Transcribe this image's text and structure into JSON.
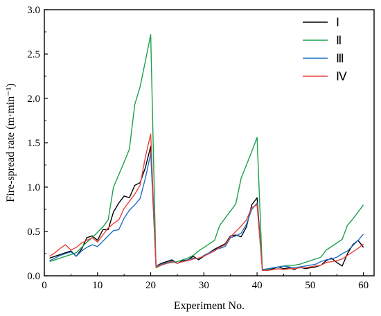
{
  "chart_data": {
    "type": "line",
    "title": "",
    "xlabel": "Experiment No.",
    "ylabel": "Fire-spread rate (m·min⁻¹)",
    "xlim": [
      0,
      62
    ],
    "ylim": [
      0,
      3.0
    ],
    "xticks": [
      0,
      10,
      20,
      30,
      40,
      50,
      60
    ],
    "yticks": [
      0.0,
      0.5,
      1.0,
      1.5,
      2.0,
      2.5,
      3.0
    ],
    "ytick_labels": [
      "0.0",
      "0.5",
      "1.0",
      "1.5",
      "2.0",
      "2.5",
      "3.0"
    ],
    "grid": false,
    "legend_position": "top-right",
    "x": [
      1,
      2,
      3,
      4,
      5,
      6,
      7,
      8,
      9,
      10,
      11,
      12,
      13,
      14,
      15,
      16,
      17,
      18,
      19,
      20,
      21,
      22,
      23,
      24,
      25,
      26,
      27,
      28,
      29,
      30,
      31,
      32,
      33,
      34,
      35,
      36,
      37,
      38,
      39,
      40,
      41,
      42,
      43,
      44,
      45,
      46,
      47,
      48,
      49,
      50,
      51,
      52,
      53,
      54,
      55,
      56,
      57,
      58,
      59,
      60
    ],
    "series": [
      {
        "name": "Ⅰ",
        "color": "#000000",
        "values": [
          0.2,
          0.22,
          0.24,
          0.26,
          0.28,
          0.22,
          0.3,
          0.43,
          0.45,
          0.4,
          0.52,
          0.52,
          0.72,
          0.82,
          0.9,
          0.88,
          1.02,
          1.05,
          1.22,
          1.46,
          0.11,
          0.14,
          0.16,
          0.18,
          0.14,
          0.17,
          0.18,
          0.22,
          0.18,
          0.22,
          0.26,
          0.3,
          0.33,
          0.36,
          0.45,
          0.46,
          0.44,
          0.55,
          0.8,
          0.88,
          0.06,
          0.07,
          0.08,
          0.1,
          0.08,
          0.09,
          0.07,
          0.1,
          0.08,
          0.09,
          0.1,
          0.12,
          0.17,
          0.2,
          0.15,
          0.11,
          0.25,
          0.35,
          0.4,
          0.32
        ]
      },
      {
        "name": "Ⅱ",
        "color": "#1aa04e",
        "values": [
          0.16,
          0.18,
          0.2,
          0.22,
          0.24,
          0.26,
          0.32,
          0.38,
          0.43,
          0.49,
          0.55,
          0.63,
          1.0,
          1.14,
          1.28,
          1.43,
          1.93,
          2.13,
          2.42,
          2.72,
          0.09,
          0.12,
          0.14,
          0.15,
          0.16,
          0.18,
          0.2,
          0.23,
          0.28,
          0.32,
          0.36,
          0.4,
          0.57,
          0.65,
          0.73,
          0.81,
          1.1,
          1.25,
          1.4,
          1.56,
          0.06,
          0.07,
          0.09,
          0.1,
          0.11,
          0.12,
          0.12,
          0.13,
          0.15,
          0.17,
          0.19,
          0.21,
          0.29,
          0.33,
          0.37,
          0.41,
          0.57,
          0.64,
          0.72,
          0.8
        ]
      },
      {
        "name": "Ⅲ",
        "color": "#1f6fc5",
        "values": [
          0.17,
          0.2,
          0.23,
          0.25,
          0.27,
          0.22,
          0.28,
          0.32,
          0.35,
          0.33,
          0.39,
          0.45,
          0.51,
          0.52,
          0.65,
          0.74,
          0.8,
          0.87,
          1.1,
          1.38,
          0.11,
          0.13,
          0.15,
          0.17,
          0.14,
          0.16,
          0.18,
          0.2,
          0.19,
          0.23,
          0.26,
          0.29,
          0.31,
          0.33,
          0.43,
          0.45,
          0.48,
          0.58,
          0.75,
          0.82,
          0.07,
          0.08,
          0.09,
          0.1,
          0.11,
          0.1,
          0.09,
          0.1,
          0.11,
          0.12,
          0.13,
          0.16,
          0.18,
          0.19,
          0.21,
          0.25,
          0.28,
          0.34,
          0.4,
          0.47
        ]
      },
      {
        "name": "Ⅳ",
        "color": "#e8413c",
        "values": [
          0.22,
          0.26,
          0.31,
          0.35,
          0.29,
          0.32,
          0.37,
          0.4,
          0.43,
          0.38,
          0.46,
          0.54,
          0.59,
          0.63,
          0.76,
          0.84,
          0.92,
          1.02,
          1.34,
          1.6,
          0.1,
          0.12,
          0.14,
          0.16,
          0.14,
          0.16,
          0.17,
          0.19,
          0.2,
          0.22,
          0.25,
          0.28,
          0.32,
          0.35,
          0.44,
          0.5,
          0.56,
          0.63,
          0.77,
          0.8,
          0.06,
          0.06,
          0.07,
          0.08,
          0.07,
          0.08,
          0.08,
          0.09,
          0.09,
          0.1,
          0.11,
          0.12,
          0.15,
          0.16,
          0.17,
          0.19,
          0.23,
          0.27,
          0.31,
          0.36
        ]
      }
    ]
  }
}
